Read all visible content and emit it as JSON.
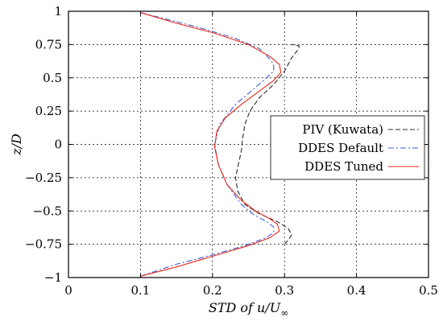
{
  "chart_data": {
    "type": "line",
    "title": "",
    "xlabel": "STD of u/U",
    "xlabel_subscript": "∞",
    "ylabel": "z/D",
    "xlim": [
      0,
      0.5
    ],
    "ylim": [
      -1,
      1
    ],
    "xticks": [
      0,
      0.1,
      0.2,
      0.3,
      0.4,
      0.5
    ],
    "xtick_labels": [
      "0",
      "0.1",
      "0.2",
      "0.3",
      "0.4",
      "0.5"
    ],
    "yticks": [
      -1,
      -0.75,
      -0.5,
      -0.25,
      0,
      0.25,
      0.5,
      0.75,
      1
    ],
    "ytick_labels": [
      "−1",
      "−0.75",
      "−0.5",
      "−0.25",
      "0",
      "0.25",
      "0.5",
      "0.75",
      "1"
    ],
    "grid": true,
    "legend_position": "right",
    "series": [
      {
        "name": "PIV (Kuwata)",
        "color": "#2b2b2b",
        "style": "dashed",
        "points": [
          [
            0.3,
            -0.75
          ],
          [
            0.305,
            -0.72
          ],
          [
            0.31,
            -0.68
          ],
          [
            0.305,
            -0.63
          ],
          [
            0.29,
            -0.58
          ],
          [
            0.265,
            -0.52
          ],
          [
            0.245,
            -0.45
          ],
          [
            0.235,
            -0.35
          ],
          [
            0.232,
            -0.25
          ],
          [
            0.236,
            -0.15
          ],
          [
            0.24,
            -0.05
          ],
          [
            0.242,
            0.05
          ],
          [
            0.245,
            0.15
          ],
          [
            0.252,
            0.25
          ],
          [
            0.265,
            0.35
          ],
          [
            0.285,
            0.45
          ],
          [
            0.3,
            0.55
          ],
          [
            0.305,
            0.6
          ],
          [
            0.31,
            0.65
          ],
          [
            0.32,
            0.72
          ],
          [
            0.32,
            0.74
          ],
          [
            0.31,
            0.75
          ]
        ]
      },
      {
        "name": "DDES Default",
        "color": "#3b5bd6",
        "style": "dash-dot",
        "points": [
          [
            0.1,
            -0.99
          ],
          [
            0.15,
            -0.9
          ],
          [
            0.2,
            -0.83
          ],
          [
            0.245,
            -0.76
          ],
          [
            0.275,
            -0.7
          ],
          [
            0.285,
            -0.66
          ],
          [
            0.285,
            -0.62
          ],
          [
            0.275,
            -0.58
          ],
          [
            0.255,
            -0.52
          ],
          [
            0.24,
            -0.45
          ],
          [
            0.22,
            -0.3
          ],
          [
            0.208,
            -0.15
          ],
          [
            0.203,
            0
          ],
          [
            0.21,
            0.15
          ],
          [
            0.232,
            0.3
          ],
          [
            0.258,
            0.42
          ],
          [
            0.275,
            0.5
          ],
          [
            0.285,
            0.55
          ],
          [
            0.285,
            0.6
          ],
          [
            0.28,
            0.64
          ],
          [
            0.265,
            0.72
          ],
          [
            0.23,
            0.8
          ],
          [
            0.18,
            0.88
          ],
          [
            0.1,
            0.99
          ]
        ]
      },
      {
        "name": "DDES Tuned",
        "color": "#e8291c",
        "style": "solid",
        "points": [
          [
            0.1,
            -0.99
          ],
          [
            0.15,
            -0.92
          ],
          [
            0.2,
            -0.84
          ],
          [
            0.25,
            -0.76
          ],
          [
            0.28,
            -0.7
          ],
          [
            0.293,
            -0.65
          ],
          [
            0.29,
            -0.6
          ],
          [
            0.28,
            -0.56
          ],
          [
            0.26,
            -0.5
          ],
          [
            0.24,
            -0.42
          ],
          [
            0.22,
            -0.3
          ],
          [
            0.208,
            -0.15
          ],
          [
            0.203,
            -0.02
          ],
          [
            0.206,
            0.1
          ],
          [
            0.218,
            0.2
          ],
          [
            0.24,
            0.3
          ],
          [
            0.265,
            0.4
          ],
          [
            0.285,
            0.48
          ],
          [
            0.295,
            0.54
          ],
          [
            0.293,
            0.6
          ],
          [
            0.28,
            0.66
          ],
          [
            0.25,
            0.75
          ],
          [
            0.2,
            0.84
          ],
          [
            0.15,
            0.91
          ],
          [
            0.1,
            0.99
          ]
        ]
      }
    ]
  }
}
